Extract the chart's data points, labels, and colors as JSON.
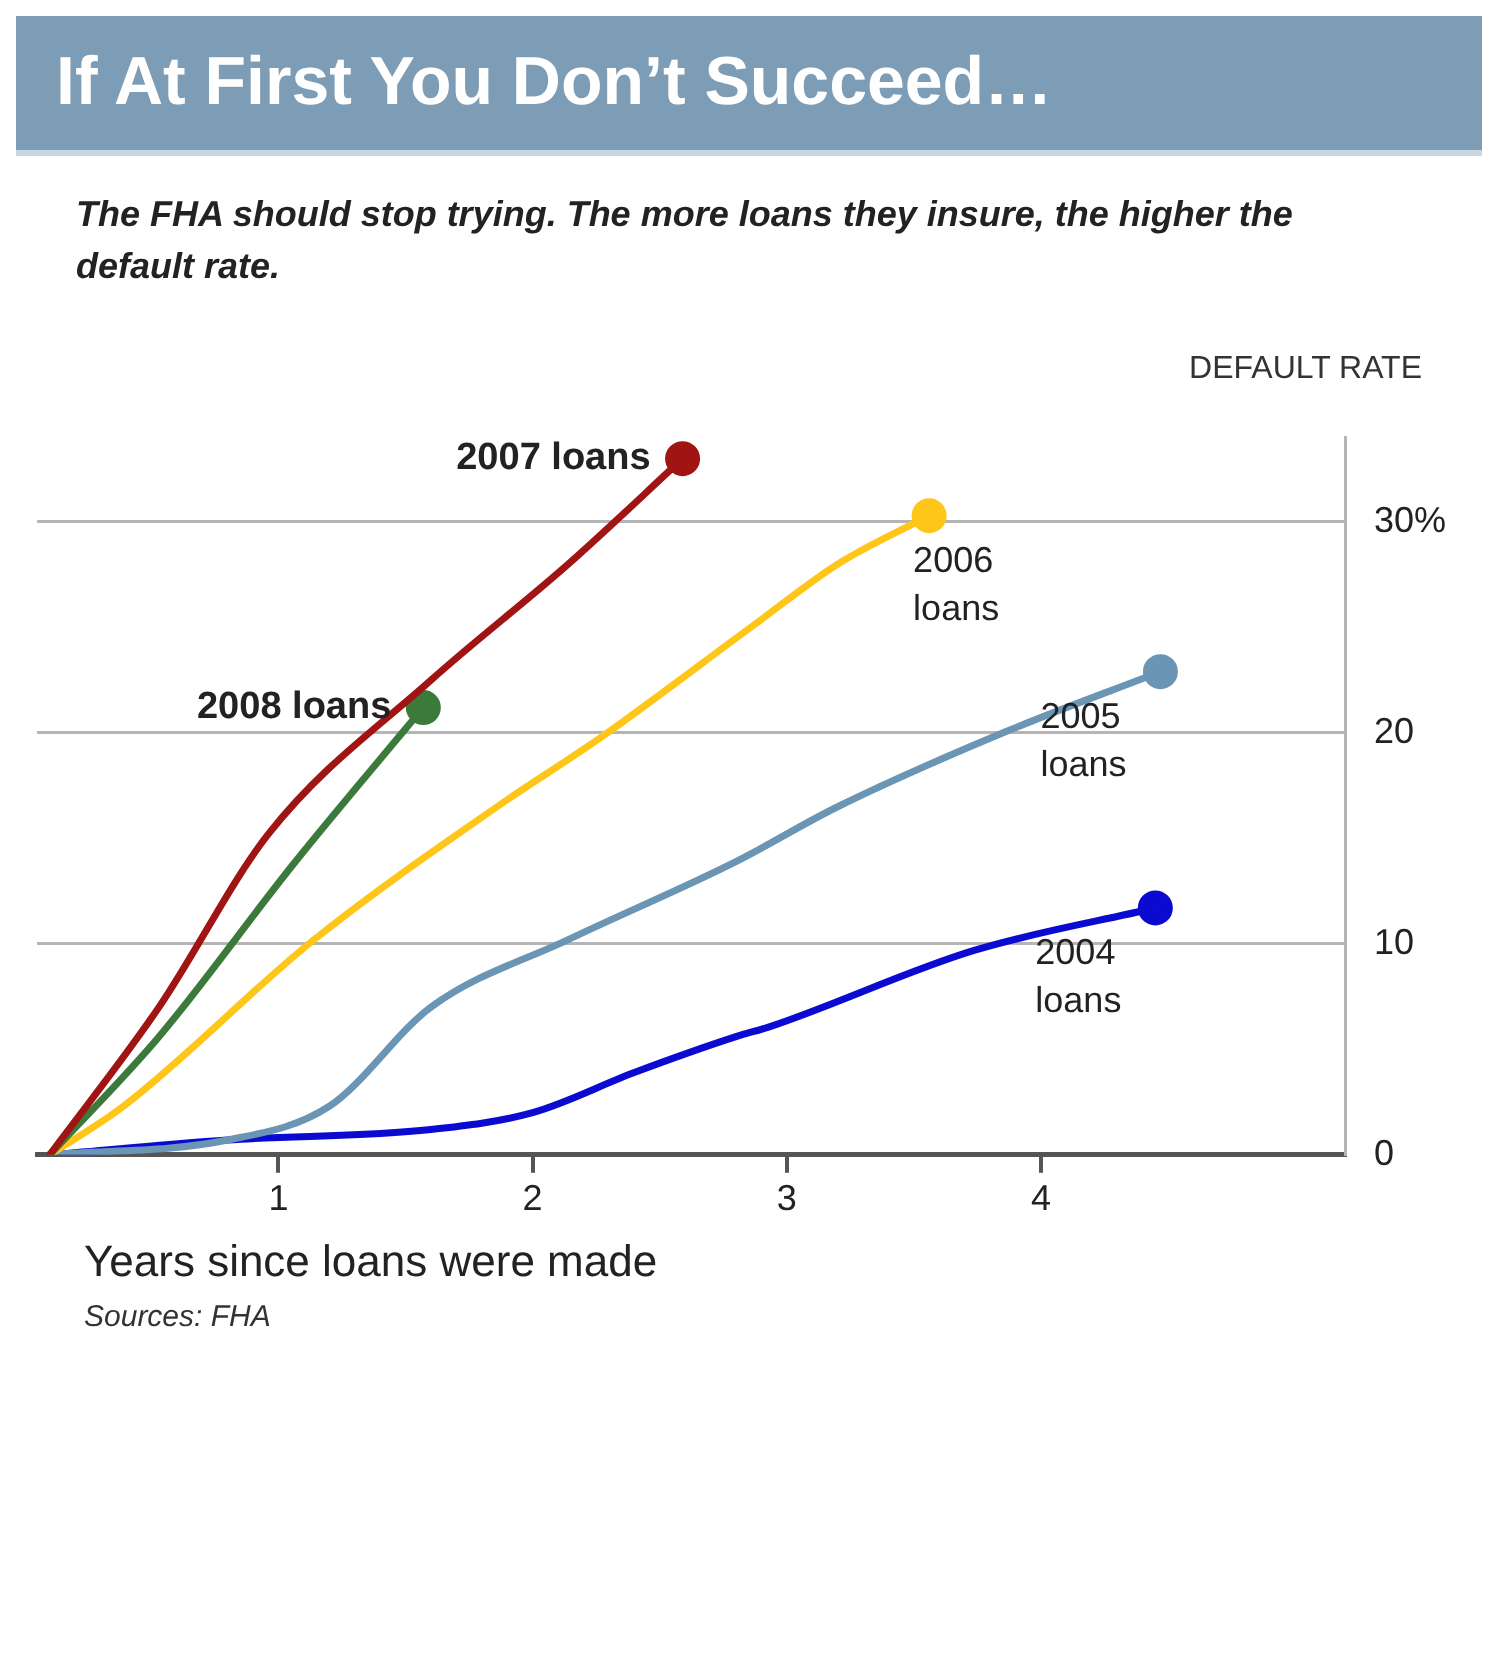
{
  "chart_data": {
    "type": "line",
    "title": "If At First You Don’t Succeed…",
    "subtitle": "The FHA should stop trying. The more loans they insure, the higher the default rate.",
    "xlabel": "Years since loans were made",
    "ylabel": "DEFAULT RATE",
    "annotations": [
      "Sources: FHA"
    ],
    "xlim": [
      0.05,
      5.2
    ],
    "xticks": [
      1,
      2,
      3,
      4
    ],
    "ylim": [
      0,
      34
    ],
    "yticks": [
      0,
      10,
      20,
      {
        "value": 30,
        "label": "30%"
      }
    ],
    "grid": "y",
    "legend": false,
    "line_style": "solid",
    "series": [
      {
        "name": "2007 loans",
        "color": "#a01414",
        "x": [
          0.1,
          0.53,
          0.96,
          1.6,
          2.14,
          2.59
        ],
        "values": [
          0,
          7.0,
          15.2,
          22.5,
          28.0,
          33.0
        ]
      },
      {
        "name": "2008 loans",
        "color": "#3c7a3c",
        "x": [
          0.1,
          0.53,
          1.06,
          1.57
        ],
        "values": [
          0,
          5.6,
          13.8,
          21.2
        ]
      },
      {
        "name": "2006 loans",
        "color": "#ffc61a",
        "x": [
          0.1,
          0.39,
          1.14,
          1.86,
          2.27,
          2.88,
          3.2,
          3.56
        ],
        "values": [
          0,
          2.3,
          10.2,
          16.5,
          19.8,
          25.2,
          28.0,
          30.3
        ]
      },
      {
        "name": "2005 loans",
        "color": "#6b95b5",
        "x": [
          0.1,
          0.8,
          1.2,
          1.6,
          2.14,
          2.8,
          3.2,
          3.87,
          4.47
        ],
        "values": [
          0,
          0.7,
          2.3,
          7.0,
          10.2,
          13.9,
          16.5,
          20.1,
          22.9
        ]
      },
      {
        "name": "2004 loans",
        "color": "#0a0ad0",
        "x": [
          0.1,
          0.8,
          1.6,
          2.0,
          2.4,
          2.8,
          2.94,
          3.74,
          4.45
        ],
        "values": [
          0,
          0.7,
          1.2,
          2.0,
          3.9,
          5.6,
          6.1,
          9.7,
          11.7
        ]
      }
    ]
  }
}
